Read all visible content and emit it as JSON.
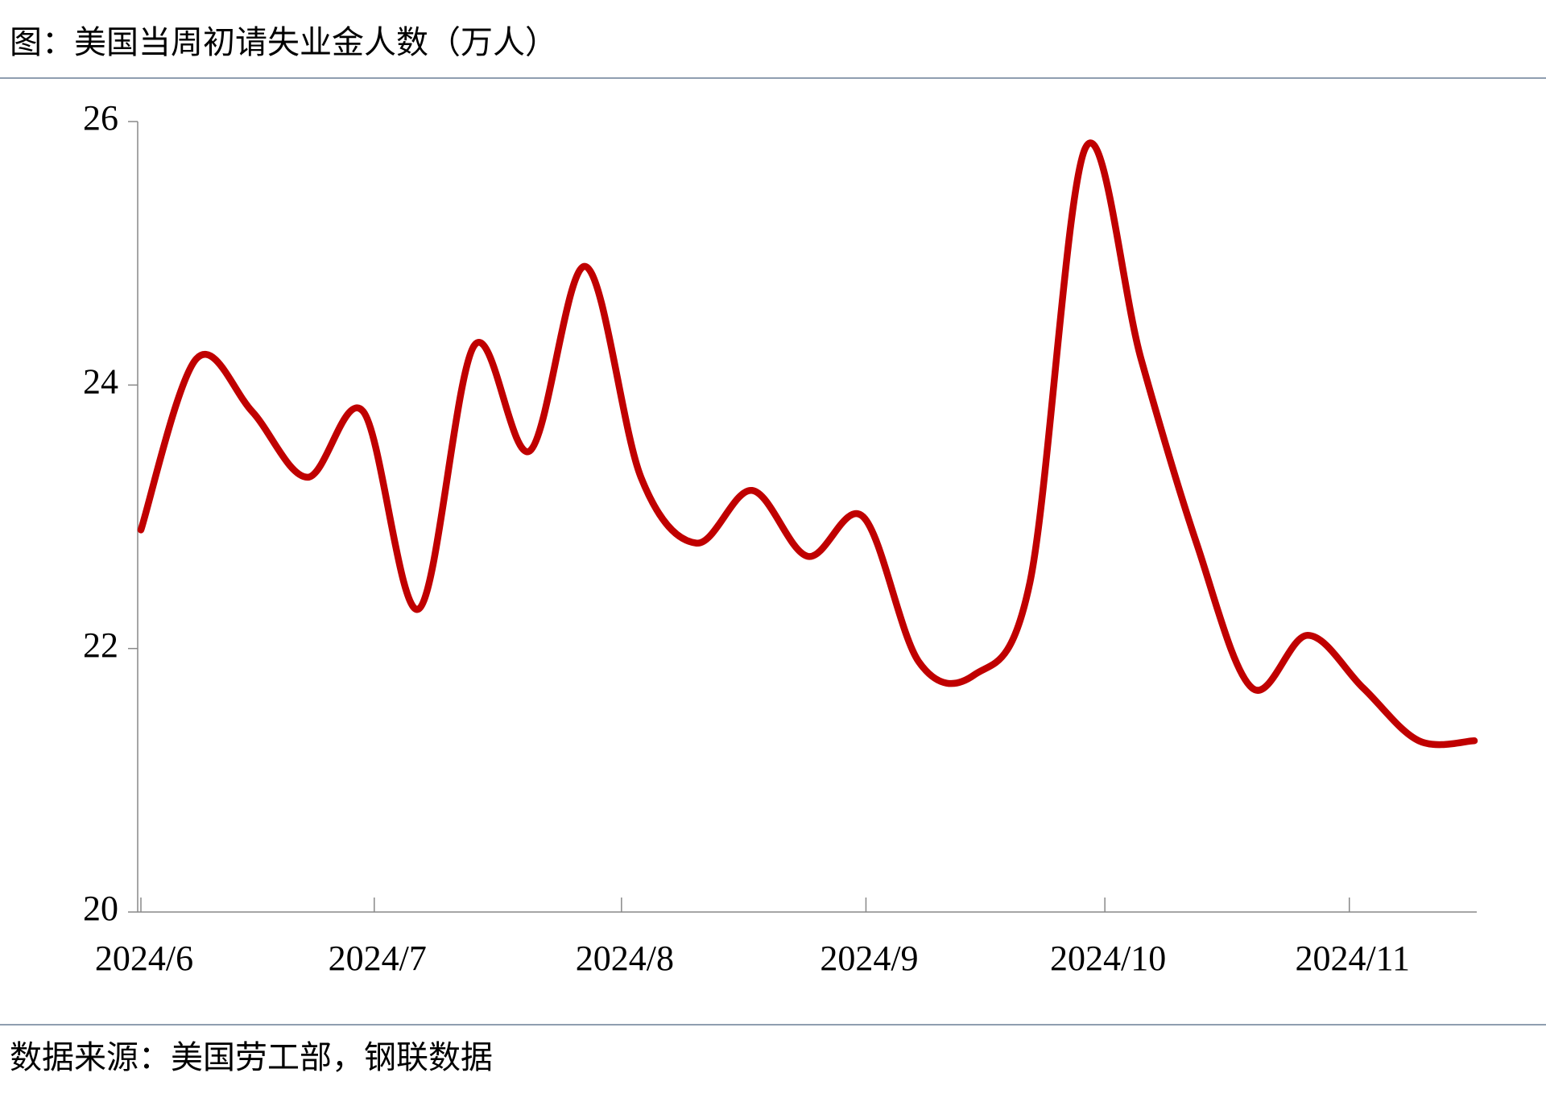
{
  "chart_data": {
    "type": "line",
    "title": "图：美国当周初请失业金人数（万人）",
    "source": "数据来源：美国劳工部，钢联数据",
    "categories": [
      null,
      null,
      null,
      null,
      null,
      null,
      null,
      null,
      null,
      null,
      null,
      null,
      null,
      null,
      null,
      null,
      null,
      null,
      null,
      null,
      null,
      null,
      null,
      null,
      null
    ],
    "series": [
      {
        "color": "#c00000",
        "values": [
          22.9,
          24.2,
          23.8,
          23.3,
          23.8,
          22.3,
          24.3,
          23.5,
          24.9,
          23.3,
          22.8,
          23.2,
          22.7,
          23.0,
          21.9,
          21.8,
          22.5,
          25.8,
          24.2,
          22.8,
          21.7,
          22.1,
          21.7,
          21.3,
          21.3
        ]
      }
    ],
    "ylim": [
      20,
      26
    ],
    "yticks": [
      20,
      22,
      24,
      26
    ],
    "xlim": [
      0,
      24
    ],
    "xticks": [
      {
        "value": 0,
        "label": "2024/6"
      },
      {
        "value": 4.2,
        "label": "2024/7"
      },
      {
        "value": 8.65,
        "label": "2024/8"
      },
      {
        "value": 13.05,
        "label": "2024/9"
      },
      {
        "value": 17.35,
        "label": "2024/10"
      },
      {
        "value": 21.75,
        "label": "2024/11"
      }
    ]
  }
}
